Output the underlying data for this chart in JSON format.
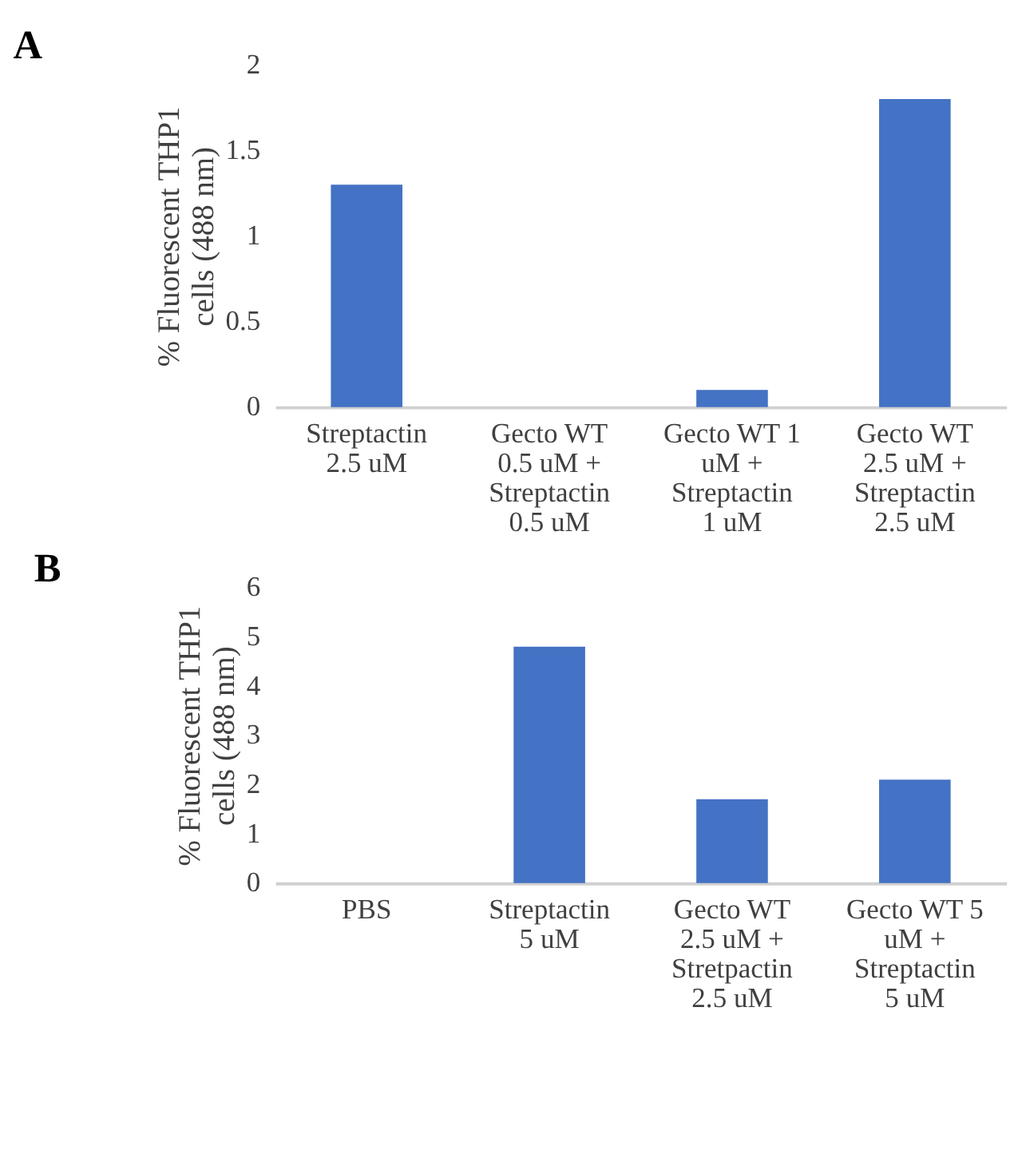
{
  "chart_data": [
    {
      "type": "bar",
      "title": "A",
      "ylabel": "% Fluorescent THP1 cells (488 nm)",
      "categories": [
        "Streptactin 2.5 uM",
        "Gecto WT 0.5 uM + Streptactin 0.5 uM",
        "Gecto WT 1 uM + Streptactin 1 uM",
        "Gecto WT 2.5 uM + Streptactin 2.5 uM"
      ],
      "values": [
        1.3,
        0,
        0.1,
        1.8
      ],
      "color": "#4472c4",
      "ylim": [
        0,
        2
      ],
      "yticks": [
        0,
        0.5,
        1,
        1.5,
        2
      ],
      "grid": false
    },
    {
      "type": "bar",
      "title": "B",
      "ylabel": "% Fluorescent THP1 cells (488 nm)",
      "categories": [
        "PBS",
        "Streptactin 5 uM",
        "Gecto WT 2.5 uM + Stretpactin 2.5 uM",
        "Gecto WT 5 uM + Streptactin 5 uM"
      ],
      "values": [
        0,
        4.8,
        1.7,
        2.1
      ],
      "color": "#4472c4",
      "ylim": [
        0,
        6
      ],
      "yticks": [
        0,
        1,
        2,
        3,
        4,
        5,
        6
      ],
      "grid": false
    }
  ]
}
